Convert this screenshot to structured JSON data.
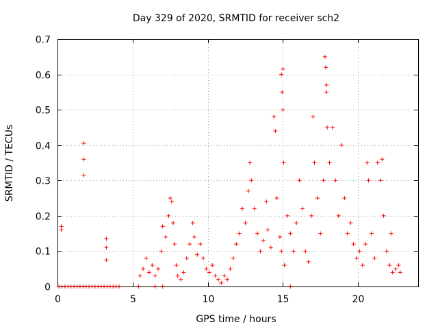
{
  "chart_data": {
    "type": "scatter",
    "title": "Day 329 of 2020, SRMTID for receiver sch2",
    "xlabel": "GPS time / hours",
    "ylabel": "SRMTID / TECUs",
    "xlim": [
      0,
      24
    ],
    "ylim": [
      0,
      0.7
    ],
    "xticks": [
      0,
      5,
      10,
      15,
      20
    ],
    "yticks": [
      0,
      0.1,
      0.2,
      0.3,
      0.4,
      0.5,
      0.6,
      0.7
    ],
    "xtick_labels": [
      "0",
      "5",
      "10",
      "15",
      "20"
    ],
    "ytick_labels": [
      "0",
      "0.1",
      "0.2",
      "0.3",
      "0.4",
      "0.5",
      "0.6",
      "0.7"
    ],
    "grid": true,
    "marker": "+",
    "series_color": "#ff0000",
    "series": [
      {
        "name": "SRMTID",
        "points": [
          [
            0.25,
            0.17
          ],
          [
            0.25,
            0.16
          ],
          [
            1.75,
            0.405
          ],
          [
            1.75,
            0.36
          ],
          [
            1.75,
            0.315
          ],
          [
            3.25,
            0.135
          ],
          [
            3.25,
            0.11
          ],
          [
            3.25,
            0.075
          ],
          [
            0.1,
            0
          ],
          [
            0.3,
            0
          ],
          [
            0.5,
            0
          ],
          [
            0.7,
            0
          ],
          [
            0.9,
            0
          ],
          [
            1.1,
            0
          ],
          [
            1.3,
            0
          ],
          [
            1.5,
            0
          ],
          [
            1.7,
            0
          ],
          [
            1.9,
            0
          ],
          [
            2.1,
            0
          ],
          [
            2.3,
            0
          ],
          [
            2.5,
            0
          ],
          [
            2.7,
            0
          ],
          [
            2.9,
            0
          ],
          [
            3.1,
            0
          ],
          [
            3.3,
            0
          ],
          [
            3.5,
            0
          ],
          [
            3.7,
            0
          ],
          [
            3.9,
            0
          ],
          [
            4.1,
            0
          ],
          [
            5.4,
            0
          ],
          [
            6.5,
            0
          ],
          [
            7.0,
            0
          ],
          [
            15.5,
            0
          ],
          [
            5.5,
            0.03
          ],
          [
            5.7,
            0.05
          ],
          [
            5.9,
            0.08
          ],
          [
            6.1,
            0.04
          ],
          [
            6.3,
            0.06
          ],
          [
            6.5,
            0.03
          ],
          [
            6.7,
            0.05
          ],
          [
            6.9,
            0.1
          ],
          [
            7.0,
            0.17
          ],
          [
            7.2,
            0.14
          ],
          [
            7.4,
            0.2
          ],
          [
            7.5,
            0.25
          ],
          [
            7.6,
            0.24
          ],
          [
            7.7,
            0.18
          ],
          [
            7.8,
            0.12
          ],
          [
            7.9,
            0.06
          ],
          [
            8.0,
            0.03
          ],
          [
            8.2,
            0.02
          ],
          [
            8.4,
            0.04
          ],
          [
            8.6,
            0.08
          ],
          [
            8.8,
            0.12
          ],
          [
            9.0,
            0.18
          ],
          [
            9.1,
            0.14
          ],
          [
            9.3,
            0.09
          ],
          [
            9.5,
            0.12
          ],
          [
            9.7,
            0.08
          ],
          [
            9.9,
            0.05
          ],
          [
            10.1,
            0.04
          ],
          [
            10.3,
            0.06
          ],
          [
            10.5,
            0.03
          ],
          [
            10.7,
            0.02
          ],
          [
            10.9,
            0.01
          ],
          [
            11.1,
            0.03
          ],
          [
            11.3,
            0.02
          ],
          [
            11.5,
            0.05
          ],
          [
            11.7,
            0.08
          ],
          [
            11.9,
            0.12
          ],
          [
            12.1,
            0.15
          ],
          [
            12.3,
            0.22
          ],
          [
            12.5,
            0.18
          ],
          [
            12.7,
            0.27
          ],
          [
            12.8,
            0.35
          ],
          [
            12.9,
            0.3
          ],
          [
            13.1,
            0.22
          ],
          [
            13.3,
            0.15
          ],
          [
            13.5,
            0.1
          ],
          [
            13.7,
            0.13
          ],
          [
            13.9,
            0.24
          ],
          [
            14.0,
            0.16
          ],
          [
            14.2,
            0.11
          ],
          [
            14.4,
            0.48
          ],
          [
            14.5,
            0.44
          ],
          [
            14.6,
            0.25
          ],
          [
            14.8,
            0.14
          ],
          [
            14.9,
            0.6
          ],
          [
            15.0,
            0.615
          ],
          [
            14.95,
            0.55
          ],
          [
            15.0,
            0.5
          ],
          [
            15.05,
            0.35
          ],
          [
            14.9,
            0.1
          ],
          [
            15.1,
            0.06
          ],
          [
            15.3,
            0.2
          ],
          [
            15.5,
            0.15
          ],
          [
            15.7,
            0.1
          ],
          [
            15.9,
            0.18
          ],
          [
            16.1,
            0.3
          ],
          [
            16.3,
            0.22
          ],
          [
            16.5,
            0.1
          ],
          [
            16.7,
            0.07
          ],
          [
            16.9,
            0.2
          ],
          [
            17.0,
            0.48
          ],
          [
            17.1,
            0.35
          ],
          [
            17.3,
            0.25
          ],
          [
            17.5,
            0.15
          ],
          [
            17.7,
            0.3
          ],
          [
            17.8,
            0.65
          ],
          [
            17.85,
            0.62
          ],
          [
            17.9,
            0.57
          ],
          [
            17.9,
            0.55
          ],
          [
            17.95,
            0.45
          ],
          [
            18.1,
            0.35
          ],
          [
            18.3,
            0.45
          ],
          [
            18.5,
            0.3
          ],
          [
            18.7,
            0.2
          ],
          [
            18.9,
            0.4
          ],
          [
            19.1,
            0.25
          ],
          [
            19.3,
            0.15
          ],
          [
            19.5,
            0.18
          ],
          [
            19.7,
            0.12
          ],
          [
            19.9,
            0.08
          ],
          [
            20.1,
            0.1
          ],
          [
            20.3,
            0.06
          ],
          [
            20.5,
            0.12
          ],
          [
            20.6,
            0.35
          ],
          [
            20.7,
            0.3
          ],
          [
            20.9,
            0.15
          ],
          [
            21.1,
            0.08
          ],
          [
            21.3,
            0.35
          ],
          [
            21.5,
            0.3
          ],
          [
            21.6,
            0.36
          ],
          [
            21.7,
            0.2
          ],
          [
            21.9,
            0.1
          ],
          [
            22.1,
            0.06
          ],
          [
            22.2,
            0.15
          ],
          [
            22.3,
            0.04
          ],
          [
            22.5,
            0.05
          ],
          [
            22.7,
            0.06
          ],
          [
            22.8,
            0.04
          ]
        ]
      }
    ]
  }
}
